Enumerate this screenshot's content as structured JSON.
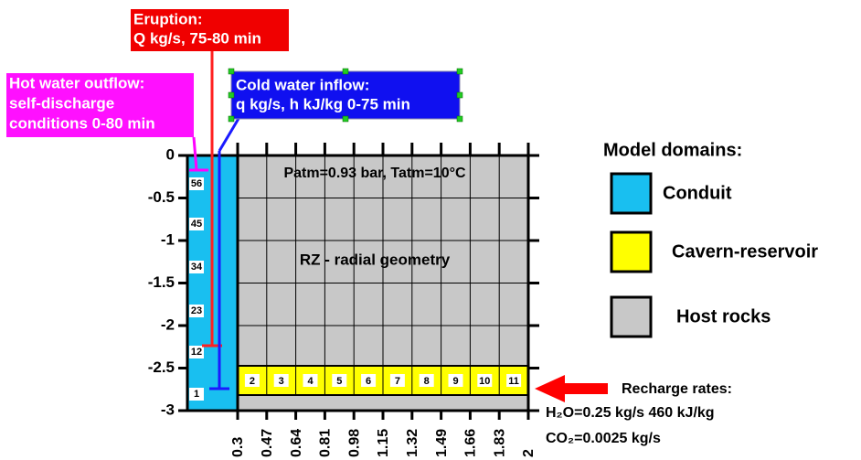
{
  "labels": {
    "eruption": [
      "Eruption:",
      "Q kg/s, 75-80 min"
    ],
    "hot_water": [
      "Hot water outflow:",
      "self-discharge",
      "conditions 0-80 min"
    ],
    "cold_water": [
      "Cold water inflow:",
      "q kg/s, h kJ/kg 0-75 min"
    ],
    "atm": "Patm=0.93 bar, Tatm=10°C",
    "geometry": "RZ - radial geometry"
  },
  "y_axis": [
    "0",
    "-0.5",
    "-1",
    "-1.5",
    "-2",
    "-2.5",
    "-3"
  ],
  "x_axis": [
    "0.3",
    "0.47",
    "0.64",
    "0.81",
    "0.98",
    "1.15",
    "1.32",
    "1.49",
    "1.66",
    "1.83",
    "2"
  ],
  "conduit_cells": [
    "56",
    "45",
    "34",
    "23",
    "12",
    "1"
  ],
  "reservoir_cells": [
    "2",
    "3",
    "4",
    "5",
    "6",
    "7",
    "8",
    "9",
    "10",
    "11"
  ],
  "legend": {
    "title": "Model domains:",
    "items": [
      "Conduit",
      "Cavern-reservoir",
      "Host rocks"
    ]
  },
  "recharge": [
    "Recharge rates:",
    "H₂O=0.25 kg/s 460 kJ/kg",
    "CO₂=0.0025 kg/s"
  ]
}
